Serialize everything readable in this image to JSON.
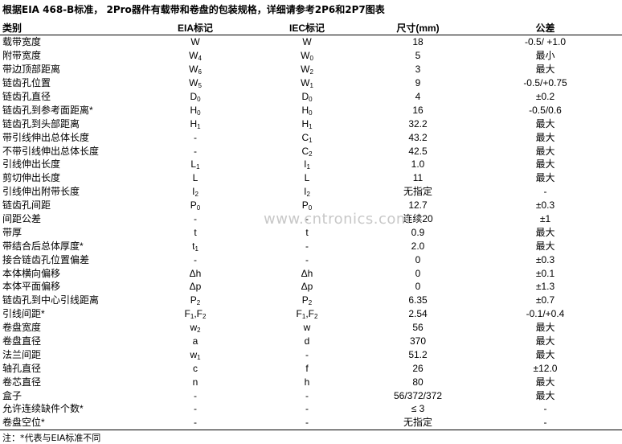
{
  "header": {
    "title": "根据EIA 468-B标准， 2Pro器件有载带和卷盘的包装规格，详细请参考2P6和2P7图表"
  },
  "table": {
    "columns": [
      "类别",
      "EIA标记",
      "IEC标记",
      "尺寸(mm)",
      "公差"
    ],
    "rows": [
      [
        "载带宽度",
        "W",
        "W",
        "18",
        "-0.5/ +1.0"
      ],
      [
        "附带宽度",
        [
          "W",
          "4"
        ],
        [
          "W",
          "0"
        ],
        "5",
        "最小"
      ],
      [
        "带边顶部距离",
        [
          "W",
          "6"
        ],
        [
          "W",
          "2"
        ],
        "3",
        "最大"
      ],
      [
        "链齿孔位置",
        [
          "W",
          "5"
        ],
        [
          "W",
          "1"
        ],
        "9",
        "-0.5/+0.75"
      ],
      [
        "链齿孔直径",
        [
          "D",
          "0"
        ],
        [
          "D",
          "0"
        ],
        "4",
        "±0.2"
      ],
      [
        "链齿孔到参考面距离*",
        [
          "H",
          "0"
        ],
        [
          "H",
          "0"
        ],
        "16",
        "-0.5/0.6"
      ],
      [
        "链齿孔到头部距离",
        [
          "H",
          "1"
        ],
        [
          "H",
          "1"
        ],
        "32.2",
        "最大"
      ],
      [
        "带引线伸出总体长度",
        "-",
        [
          "C",
          "1"
        ],
        "43.2",
        "最大"
      ],
      [
        "不带引线伸出总体长度",
        "-",
        [
          "C",
          "2"
        ],
        "42.5",
        "最大"
      ],
      [
        "引线伸出长度",
        [
          "L",
          "1"
        ],
        [
          "I",
          "1"
        ],
        "1.0",
        "最大"
      ],
      [
        "剪切伸出长度",
        "L",
        "L",
        "11",
        "最大"
      ],
      [
        "引线伸出附带长度",
        [
          "I",
          "2"
        ],
        [
          "I",
          "2"
        ],
        "无指定",
        "-"
      ],
      [
        "链齿孔间距",
        [
          "P",
          "0"
        ],
        [
          "P",
          "0"
        ],
        "12.7",
        "±0.3"
      ],
      [
        "间距公差",
        "-",
        "-",
        "连续20",
        "±1"
      ],
      [
        "带厚",
        "t",
        "t",
        "0.9",
        "最大"
      ],
      [
        "带结合后总体厚度*",
        [
          "t",
          "1"
        ],
        "-",
        "2.0",
        "最大"
      ],
      [
        "接合链齿孔位置偏差",
        "-",
        "-",
        "0",
        "±0.3"
      ],
      [
        "本体横向偏移",
        "Δh",
        "Δh",
        "0",
        "±0.1"
      ],
      [
        "本体平面偏移",
        "Δp",
        "Δp",
        "0",
        "±1.3"
      ],
      [
        "链齿孔到中心引线距离",
        [
          "P",
          "2"
        ],
        [
          "P",
          "2"
        ],
        "6.35",
        "±0.7"
      ],
      [
        "引线间距*",
        [
          "F",
          "1",
          ",F",
          "2"
        ],
        [
          "F",
          "1",
          ",F",
          "2"
        ],
        "2.54",
        "-0.1/+0.4"
      ],
      [
        "卷盘宽度",
        [
          "w",
          "2"
        ],
        "w",
        "56",
        "最大"
      ],
      [
        "卷盘直径",
        "a",
        "d",
        "370",
        "最大"
      ],
      [
        "法兰间距",
        [
          "w",
          "1"
        ],
        "-",
        "51.2",
        "最大"
      ],
      [
        "轴孔直径",
        "c",
        "f",
        "26",
        "±12.0"
      ],
      [
        "卷芯直径",
        "n",
        "h",
        "80",
        "最大"
      ],
      [
        "盒子",
        "-",
        "-",
        "56/372/372",
        "最大"
      ],
      [
        "允许连续缺件个数*",
        "-",
        "-",
        "≤ 3",
        "-"
      ],
      [
        "卷盘空位*",
        "-",
        "-",
        "无指定",
        "-"
      ]
    ]
  },
  "watermark": "www.cntronics.com",
  "footer": {
    "note": "注：*代表与EIA标准不同"
  }
}
